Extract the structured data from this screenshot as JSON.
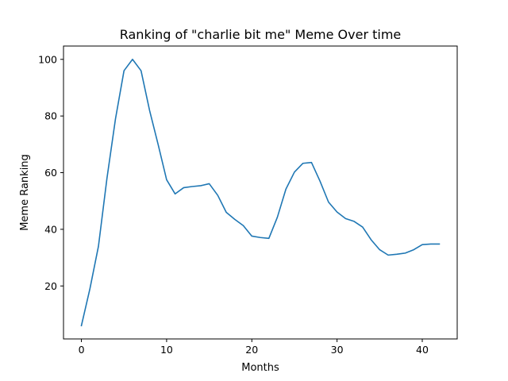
{
  "chart_data": {
    "type": "line",
    "title": "Ranking of \"charlie bit me\" Meme Over time",
    "xlabel": "Months",
    "ylabel": "Meme Ranking",
    "xlim": [
      -2.1,
      44.1
    ],
    "ylim": [
      1.3,
      104.7
    ],
    "xticks": [
      0,
      10,
      20,
      30,
      40
    ],
    "yticks": [
      20,
      40,
      60,
      80,
      100
    ],
    "grid": false,
    "legend": "none",
    "series": [
      {
        "color": "#1f77b4",
        "x": [
          0,
          1,
          2,
          3,
          4,
          5,
          6,
          7,
          8,
          9,
          10,
          11,
          12,
          13,
          14,
          15,
          16,
          17,
          18,
          19,
          20,
          21,
          22,
          23,
          24,
          25,
          26,
          27,
          28,
          29,
          30,
          31,
          32,
          33,
          34,
          35,
          36,
          37,
          38,
          39,
          40,
          41,
          42
        ],
        "values": [
          6,
          19,
          34,
          58,
          79,
          96,
          100,
          96,
          82,
          70,
          57.5,
          52.5,
          54.7,
          55.1,
          55.4,
          56.1,
          52,
          46,
          43.5,
          41.3,
          37.6,
          37.1,
          36.8,
          44.3,
          54.2,
          60.2,
          63.3,
          63.6,
          57,
          49.6,
          46.1,
          43.8,
          42.8,
          40.8,
          36.3,
          32.8,
          30.9,
          31.2,
          31.6,
          32.8,
          34.6,
          34.8,
          34.8
        ]
      }
    ]
  }
}
